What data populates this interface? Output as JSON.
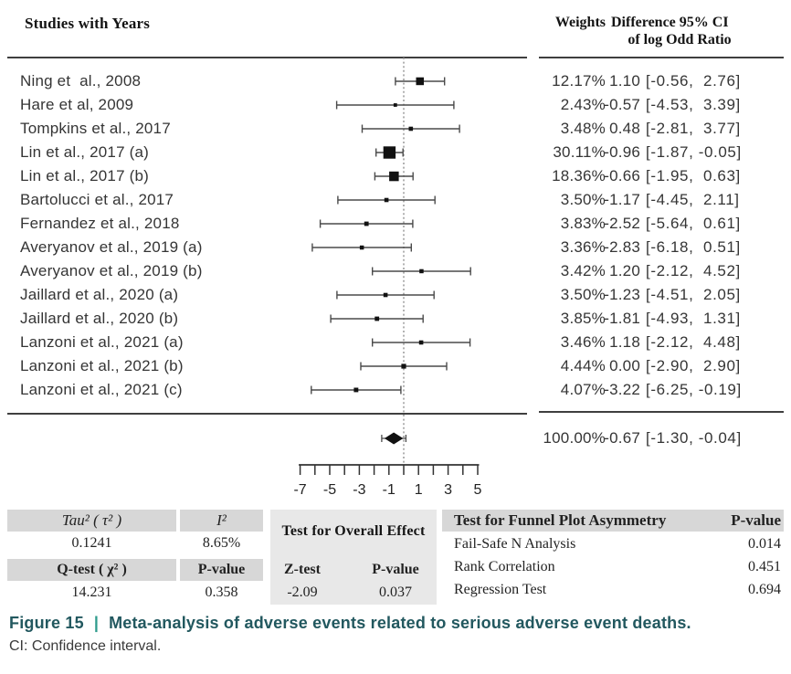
{
  "columns": {
    "studies": "Studies with Years",
    "weights": "Weights",
    "difference_line1": "Difference 95% CI",
    "difference_line2": "of log Odd Ratio"
  },
  "chart_data": {
    "type": "forest",
    "title": "Meta-analysis forest plot of log odd ratio differences",
    "axis": {
      "min": -7,
      "max": 5,
      "tick_step": 1,
      "labeled_ticks": [
        -7,
        -5,
        -3,
        -1,
        1,
        3,
        5
      ],
      "zero_line": 0
    },
    "studies": [
      {
        "label": "Ning et  al., 2008",
        "weight": 12.17,
        "weight_display": "12.17%",
        "estimate": 1.1,
        "estimate_display": "1.10",
        "ci_low": -0.56,
        "ci_high": 2.76,
        "ci_display": "[-0.56,  2.76]"
      },
      {
        "label": "Hare et al, 2009",
        "weight": 2.43,
        "weight_display": "2.43%",
        "estimate": -0.57,
        "estimate_display": "-0.57",
        "ci_low": -4.53,
        "ci_high": 3.39,
        "ci_display": "[-4.53,  3.39]"
      },
      {
        "label": "Tompkins et al., 2017",
        "weight": 3.48,
        "weight_display": "3.48%",
        "estimate": 0.48,
        "estimate_display": "0.48",
        "ci_low": -2.81,
        "ci_high": 3.77,
        "ci_display": "[-2.81,  3.77]"
      },
      {
        "label": "Lin et al., 2017 (a)",
        "weight": 30.11,
        "weight_display": "30.11%",
        "estimate": -0.96,
        "estimate_display": "-0.96",
        "ci_low": -1.87,
        "ci_high": -0.05,
        "ci_display": "[-1.87, -0.05]"
      },
      {
        "label": "Lin et al., 2017 (b)",
        "weight": 18.36,
        "weight_display": "18.36%",
        "estimate": -0.66,
        "estimate_display": "-0.66",
        "ci_low": -1.95,
        "ci_high": 0.63,
        "ci_display": "[-1.95,  0.63]"
      },
      {
        "label": "Bartolucci et al., 2017",
        "weight": 3.5,
        "weight_display": "3.50%",
        "estimate": -1.17,
        "estimate_display": "-1.17",
        "ci_low": -4.45,
        "ci_high": 2.11,
        "ci_display": "[-4.45,  2.11]"
      },
      {
        "label": "Fernandez et al., 2018",
        "weight": 3.83,
        "weight_display": "3.83%",
        "estimate": -2.52,
        "estimate_display": "-2.52",
        "ci_low": -5.64,
        "ci_high": 0.61,
        "ci_display": "[-5.64,  0.61]"
      },
      {
        "label": "Averyanov et al., 2019 (a)",
        "weight": 3.36,
        "weight_display": "3.36%",
        "estimate": -2.83,
        "estimate_display": "-2.83",
        "ci_low": -6.18,
        "ci_high": 0.51,
        "ci_display": "[-6.18,  0.51]"
      },
      {
        "label": "Averyanov et al., 2019 (b)",
        "weight": 3.42,
        "weight_display": "3.42%",
        "estimate": 1.2,
        "estimate_display": "1.20",
        "ci_low": -2.12,
        "ci_high": 4.52,
        "ci_display": "[-2.12,  4.52]"
      },
      {
        "label": "Jaillard et al., 2020 (a)",
        "weight": 3.5,
        "weight_display": "3.50%",
        "estimate": -1.23,
        "estimate_display": "-1.23",
        "ci_low": -4.51,
        "ci_high": 2.05,
        "ci_display": "[-4.51,  2.05]"
      },
      {
        "label": "Jaillard et al., 2020 (b)",
        "weight": 3.85,
        "weight_display": "3.85%",
        "estimate": -1.81,
        "estimate_display": "-1.81",
        "ci_low": -4.93,
        "ci_high": 1.31,
        "ci_display": "[-4.93,  1.31]"
      },
      {
        "label": "Lanzoni et al., 2021 (a)",
        "weight": 3.46,
        "weight_display": "3.46%",
        "estimate": 1.18,
        "estimate_display": "1.18",
        "ci_low": -2.12,
        "ci_high": 4.48,
        "ci_display": "[-2.12,  4.48]"
      },
      {
        "label": "Lanzoni et al., 2021 (b)",
        "weight": 4.44,
        "weight_display": "4.44%",
        "estimate": 0.0,
        "estimate_display": "0.00",
        "ci_low": -2.9,
        "ci_high": 2.9,
        "ci_display": "[-2.90,  2.90]"
      },
      {
        "label": "Lanzoni et al., 2021 (c)",
        "weight": 4.07,
        "weight_display": "4.07%",
        "estimate": -3.22,
        "estimate_display": "-3.22",
        "ci_low": -6.25,
        "ci_high": -0.19,
        "ci_display": "[-6.25, -0.19]"
      }
    ],
    "summary": {
      "weight": 100.0,
      "weight_display": "100.00%",
      "estimate": -0.67,
      "estimate_display": "-0.67",
      "ci_low": -1.3,
      "ci_high": -0.04,
      "ci_display": "[-1.30, -0.04]"
    }
  },
  "stats": {
    "heterogeneity": {
      "tau2_label": "Tau² ( τ² )",
      "i2_label": "I²",
      "tau2_value": "0.1241",
      "i2_value": "8.65%",
      "qtest_label": "Q-test ( χ² )",
      "p_label": "P-value",
      "qtest_value": "14.231",
      "p_value": "0.358"
    },
    "overall_effect": {
      "title": "Test for Overall Effect",
      "ztest_label": "Z-test",
      "p_label": "P-value",
      "ztest_value": "-2.09",
      "p_value": "0.037"
    },
    "funnel": {
      "title": "Test for Funnel Plot Asymmetry",
      "p_label": "P-value",
      "rows": [
        {
          "label": "Fail-Safe N Analysis",
          "value": "0.014"
        },
        {
          "label": "Rank Correlation",
          "value": "0.451"
        },
        {
          "label": "Regression Test",
          "value": "0.694"
        }
      ]
    }
  },
  "caption": {
    "figure_label": "Figure 15",
    "separator": "|",
    "title": "Meta-analysis of adverse events related to serious adverse event deaths.",
    "note": "CI: Confidence interval."
  },
  "colors": {
    "caption_text": "#22585f",
    "caption_separator": "#2f9c8d",
    "header_shade": "#d7d7d7",
    "panel_shade": "#e8e8e8",
    "marker": "#111111",
    "ci_line": "#4a4a4a",
    "rule": "#3f3f3f"
  }
}
